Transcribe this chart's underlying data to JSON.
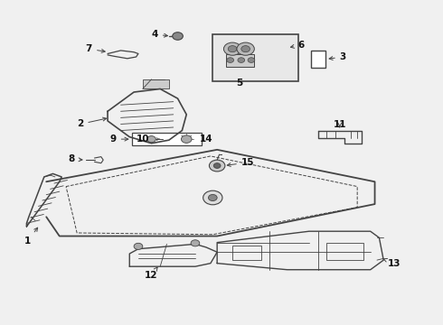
{
  "background_color": "#f0f0f0",
  "line_color": "#444444",
  "text_color": "#111111",
  "label_fs": 7.5,
  "lw_main": 1.0,
  "lw_thin": 0.6
}
